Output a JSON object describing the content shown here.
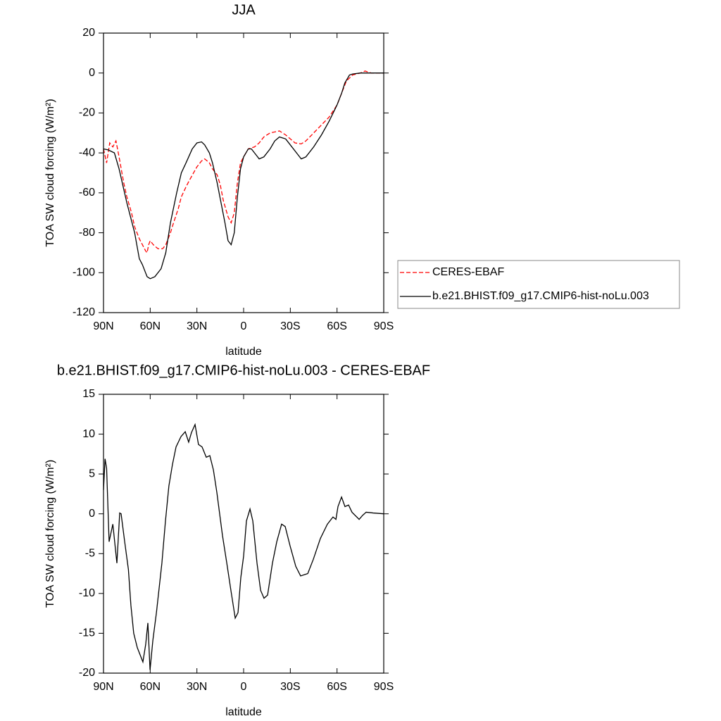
{
  "chart_data": [
    {
      "type": "line",
      "title": "JJA",
      "xlabel": "latitude",
      "ylabel": "TOA SW cloud forcing (W/m²)",
      "xlim": [
        90,
        -90
      ],
      "xticks": [
        {
          "value": 90,
          "label": "90N"
        },
        {
          "value": 60,
          "label": "60N"
        },
        {
          "value": 30,
          "label": "30N"
        },
        0,
        {
          "value": -30,
          "label": "30S"
        },
        {
          "value": -60,
          "label": "60S"
        },
        {
          "value": -90,
          "label": "90S"
        }
      ],
      "ylim": [
        -120,
        20
      ],
      "yticks": [
        -120,
        -100,
        -80,
        -60,
        -40,
        -20,
        0,
        20
      ],
      "legend": "outside right",
      "series": [
        {
          "name": "CERES-EBAF",
          "color": "#ff0000",
          "linestyle": "dashed",
          "x": [
            90,
            88,
            86,
            84,
            82,
            80,
            77,
            75,
            72,
            70,
            67,
            65,
            63,
            62,
            61,
            60,
            58,
            55,
            52,
            50,
            47,
            45,
            42,
            40,
            37,
            35,
            30,
            27,
            25,
            22,
            20,
            17,
            15,
            13,
            10,
            8,
            6,
            4,
            2,
            0,
            -3,
            -7,
            -10,
            -13,
            -17,
            -23,
            -27,
            -30,
            -33,
            -37,
            -40,
            -45,
            -50,
            -55,
            -60,
            -63,
            -66,
            -70,
            -75,
            -78,
            -82,
            -90
          ],
          "values": [
            -38,
            -45,
            -35,
            -37,
            -34,
            -42,
            -55,
            -62,
            -70,
            -77,
            -83,
            -86,
            -89,
            -90,
            -86,
            -84,
            -86,
            -88,
            -88,
            -86,
            -80,
            -75,
            -68,
            -62,
            -57,
            -54,
            -47,
            -44,
            -43,
            -45,
            -48,
            -51,
            -56,
            -64,
            -72,
            -75,
            -70,
            -55,
            -45,
            -42,
            -38,
            -37,
            -35,
            -32,
            -30,
            -29,
            -31,
            -33,
            -35,
            -35.5,
            -34,
            -30,
            -26,
            -22,
            -16,
            -10,
            -4,
            -1,
            0,
            1,
            0,
            0
          ]
        },
        {
          "name": "b.e21.BHIST.f09_g17.CMIP6-hist-noLu.003",
          "color": "#000000",
          "linestyle": "solid",
          "x": [
            90,
            87,
            83,
            80,
            75,
            70,
            67,
            65,
            62,
            60,
            57,
            53,
            50,
            47,
            43,
            40,
            37,
            33,
            30,
            27,
            25,
            22,
            20,
            17,
            15,
            12,
            10,
            8,
            6,
            4,
            2,
            0,
            -3,
            -5,
            -8,
            -10,
            -13,
            -17,
            -20,
            -23,
            -27,
            -30,
            -35,
            -37,
            -40,
            -45,
            -50,
            -55,
            -60,
            -63,
            -65,
            -68,
            -70,
            -75,
            -80,
            -90
          ],
          "values": [
            -38,
            -38.5,
            -40,
            -48,
            -65,
            -80,
            -93,
            -96,
            -102,
            -103,
            -102,
            -98,
            -90,
            -75,
            -60,
            -50,
            -45,
            -38,
            -35,
            -34.5,
            -36,
            -40,
            -45,
            -55,
            -63,
            -75,
            -84,
            -86,
            -80,
            -62,
            -48,
            -42,
            -38,
            -38,
            -41,
            -43,
            -42,
            -38,
            -34,
            -32,
            -33,
            -36,
            -41,
            -43,
            -42,
            -37,
            -31,
            -24,
            -16,
            -10,
            -5,
            -1,
            -0.5,
            0,
            0,
            0
          ]
        }
      ]
    },
    {
      "type": "line",
      "title": "b.e21.BHIST.f09_g17.CMIP6-hist-noLu.003 - CERES-EBAF",
      "xlabel": "latitude",
      "ylabel": "TOA SW cloud forcing (W/m²)",
      "xlim": [
        90,
        -90
      ],
      "xticks": [
        {
          "value": 90,
          "label": "90N"
        },
        {
          "value": 60,
          "label": "60N"
        },
        {
          "value": 30,
          "label": "30N"
        },
        0,
        {
          "value": -30,
          "label": "30S"
        },
        {
          "value": -60,
          "label": "60S"
        },
        {
          "value": -90,
          "label": "90S"
        }
      ],
      "ylim": [
        -20,
        15
      ],
      "yticks": [
        -20,
        -15,
        -10,
        -5,
        0,
        5,
        10,
        15
      ],
      "series": [
        {
          "color": "#000000",
          "linestyle": "solid",
          "x": [
            90,
            89,
            88,
            86.4,
            84,
            81.4,
            79.6,
            78.7,
            76.4,
            74,
            72.4,
            70.6,
            68.3,
            64.7,
            62.9,
            61.5,
            60.1,
            58.3,
            56,
            52.5,
            50.2,
            48,
            45.7,
            43.4,
            40.2,
            37.5,
            35.3,
            33.5,
            31.2,
            29,
            26.7,
            24,
            21.7,
            19.4,
            17.2,
            13.6,
            10.8,
            8.1,
            5.4,
            3.6,
            1.8,
            0,
            -1.8,
            -4.1,
            -5.9,
            -8.6,
            -10.9,
            -13.1,
            -15.4,
            -18.5,
            -21.3,
            -24.4,
            -26.7,
            -29.8,
            -33.5,
            -36.6,
            -41.2,
            -44.8,
            -49.3,
            -53.8,
            -57.4,
            -59.3,
            -60.6,
            -62.9,
            -65.1,
            -67.4,
            -69.6,
            -74.2,
            -76.4,
            -78.7,
            -83.2,
            -90
          ],
          "values": [
            3,
            6.9,
            5.7,
            -3.5,
            -1.3,
            -6.2,
            0.1,
            0,
            -3.5,
            -7,
            -11.5,
            -15,
            -16.8,
            -18.6,
            -16.4,
            -13.7,
            -19.6,
            -15.9,
            -12.4,
            -6.2,
            -0.9,
            3.5,
            6.2,
            8.4,
            9.7,
            10.3,
            9,
            10.2,
            11.2,
            8.7,
            8.4,
            7.1,
            7.3,
            5.5,
            2.7,
            -2.7,
            -6.2,
            -9.7,
            -13.1,
            -12.4,
            -8,
            -5.3,
            -0.9,
            0.6,
            -0.9,
            -6.2,
            -9.6,
            -10.6,
            -10.2,
            -6.2,
            -3.5,
            -1.3,
            -1.6,
            -4,
            -6.6,
            -7.8,
            -7.5,
            -5.7,
            -3.1,
            -1.3,
            -0.4,
            -0.7,
            0.9,
            2.1,
            0.9,
            1.1,
            0.2,
            -0.7,
            -0.2,
            0.2,
            0.1,
            0
          ]
        }
      ]
    }
  ]
}
